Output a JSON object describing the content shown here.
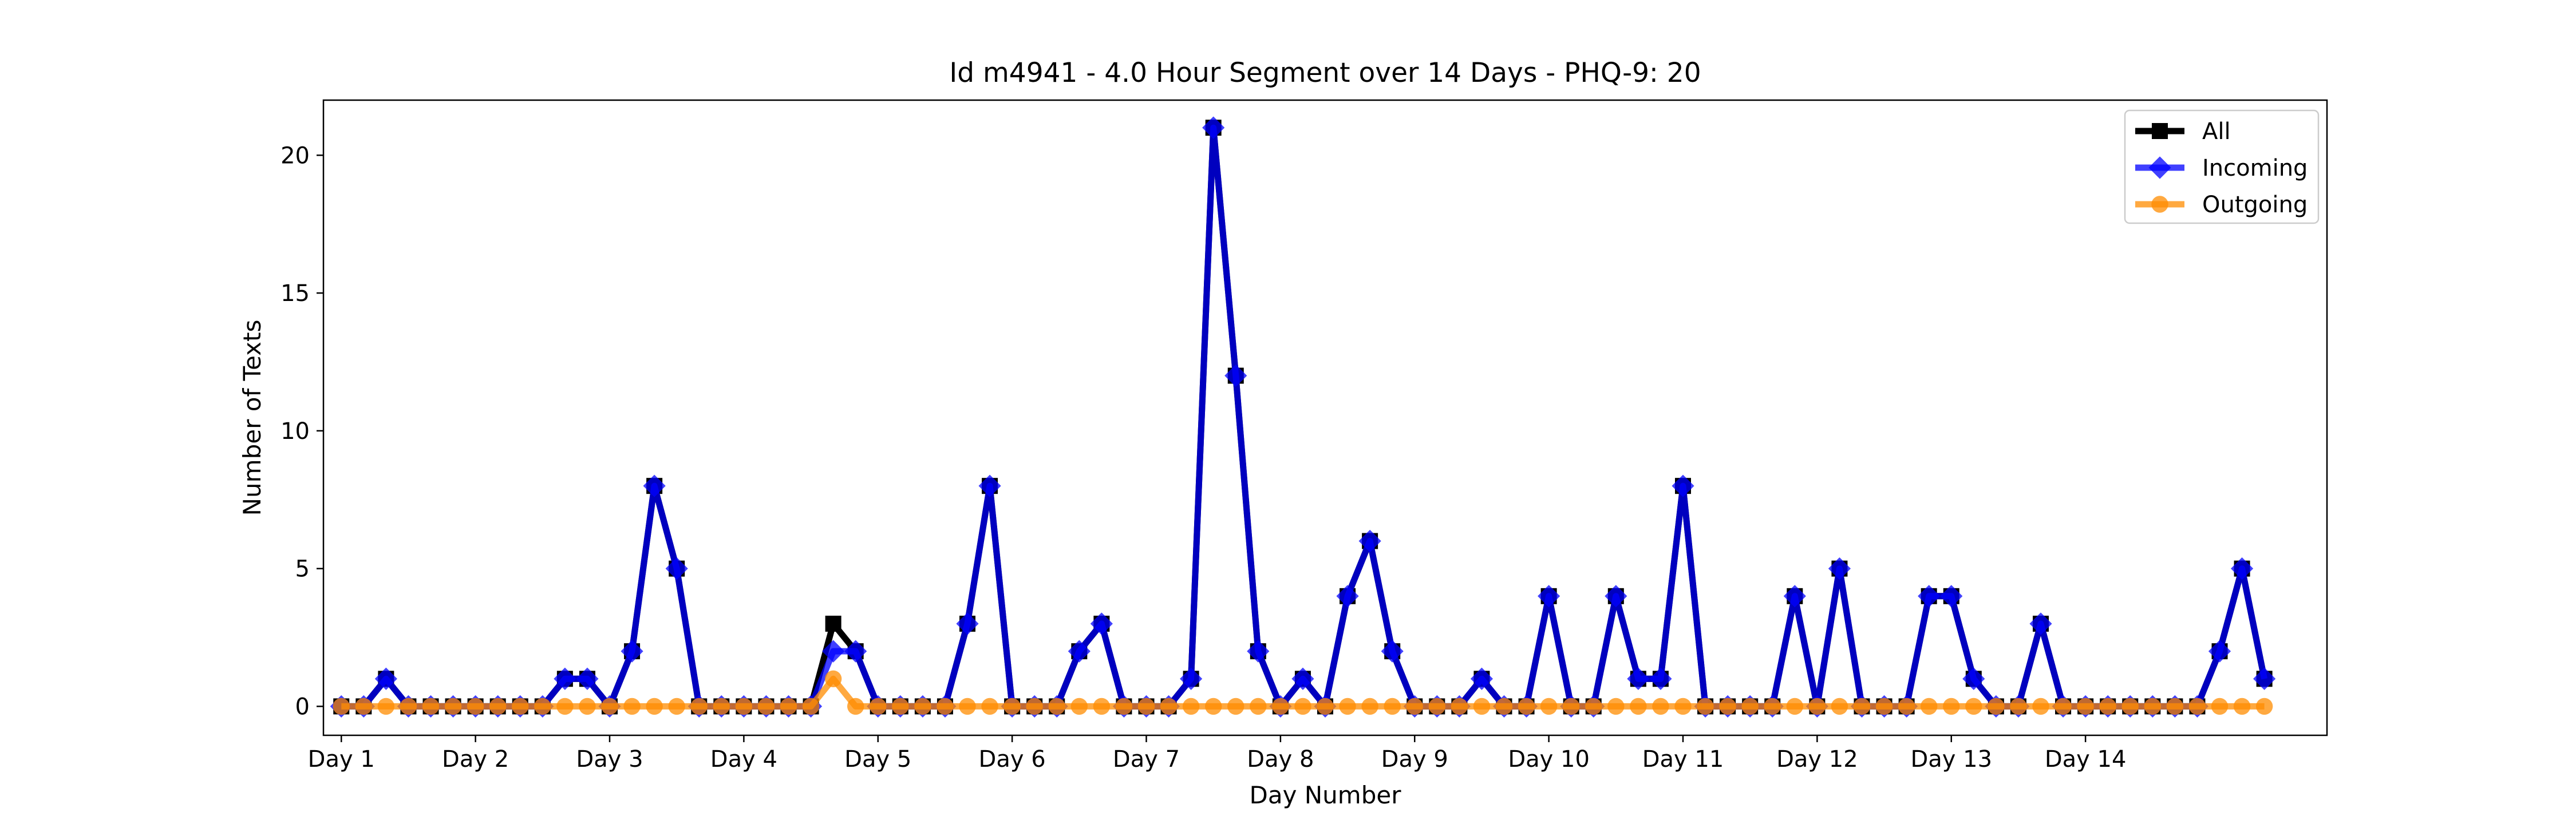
{
  "chart_data": {
    "type": "line",
    "title": "Id m4941 - 4.0 Hour Segment over 14 Days - PHQ-9: 20",
    "xlabel": "Day Number",
    "ylabel": "Number of Texts",
    "xlim": [
      -0.8,
      88.8
    ],
    "ylim": [
      -1.05,
      22
    ],
    "x_ticks": [
      {
        "value": 0,
        "label": "Day 1"
      },
      {
        "value": 6,
        "label": "Day 2"
      },
      {
        "value": 12,
        "label": "Day 3"
      },
      {
        "value": 18,
        "label": "Day 4"
      },
      {
        "value": 24,
        "label": "Day 5"
      },
      {
        "value": 30,
        "label": "Day 6"
      },
      {
        "value": 36,
        "label": "Day 7"
      },
      {
        "value": 42,
        "label": "Day 8"
      },
      {
        "value": 48,
        "label": "Day 9"
      },
      {
        "value": 54,
        "label": "Day 10"
      },
      {
        "value": 60,
        "label": "Day 11"
      },
      {
        "value": 66,
        "label": "Day 12"
      },
      {
        "value": 72,
        "label": "Day 13"
      },
      {
        "value": 78,
        "label": "Day 14"
      }
    ],
    "y_ticks": [
      {
        "value": 0,
        "label": "0"
      },
      {
        "value": 5,
        "label": "5"
      },
      {
        "value": 10,
        "label": "10"
      },
      {
        "value": 15,
        "label": "15"
      },
      {
        "value": 20,
        "label": "20"
      }
    ],
    "grid": false,
    "legend_position": "top-right",
    "series": [
      {
        "name": "All",
        "color": "#000000",
        "marker": "square",
        "values": [
          0,
          0,
          1,
          0,
          0,
          0,
          0,
          0,
          0,
          0,
          1,
          1,
          0,
          2,
          8,
          5,
          0,
          0,
          0,
          0,
          0,
          0,
          3,
          2,
          0,
          0,
          0,
          0,
          3,
          8,
          0,
          0,
          0,
          2,
          3,
          0,
          0,
          0,
          1,
          21,
          12,
          2,
          0,
          1,
          0,
          4,
          6,
          2,
          0,
          0,
          0,
          1,
          0,
          0,
          4,
          0,
          0,
          4,
          1,
          1,
          8,
          0,
          0,
          0,
          0,
          4,
          0,
          5,
          0,
          0,
          0,
          4,
          4,
          1,
          0,
          0,
          3,
          0,
          0,
          0,
          0,
          0,
          0,
          0,
          2,
          5,
          1
        ]
      },
      {
        "name": "Incoming",
        "color": "#0000ff",
        "marker": "diamond",
        "values": [
          0,
          0,
          1,
          0,
          0,
          0,
          0,
          0,
          0,
          0,
          1,
          1,
          0,
          2,
          8,
          5,
          0,
          0,
          0,
          0,
          0,
          0,
          2,
          2,
          0,
          0,
          0,
          0,
          3,
          8,
          0,
          0,
          0,
          2,
          3,
          0,
          0,
          0,
          1,
          21,
          12,
          2,
          0,
          1,
          0,
          4,
          6,
          2,
          0,
          0,
          0,
          1,
          0,
          0,
          4,
          0,
          0,
          4,
          1,
          1,
          8,
          0,
          0,
          0,
          0,
          4,
          0,
          5,
          0,
          0,
          0,
          4,
          4,
          1,
          0,
          0,
          3,
          0,
          0,
          0,
          0,
          0,
          0,
          0,
          2,
          5,
          1
        ]
      },
      {
        "name": "Outgoing",
        "color": "#ff8c00",
        "marker": "circle",
        "values": [
          0,
          0,
          0,
          0,
          0,
          0,
          0,
          0,
          0,
          0,
          0,
          0,
          0,
          0,
          0,
          0,
          0,
          0,
          0,
          0,
          0,
          0,
          1,
          0,
          0,
          0,
          0,
          0,
          0,
          0,
          0,
          0,
          0,
          0,
          0,
          0,
          0,
          0,
          0,
          0,
          0,
          0,
          0,
          0,
          0,
          0,
          0,
          0,
          0,
          0,
          0,
          0,
          0,
          0,
          0,
          0,
          0,
          0,
          0,
          0,
          0,
          0,
          0,
          0,
          0,
          0,
          0,
          0,
          0,
          0,
          0,
          0,
          0,
          0,
          0,
          0,
          0,
          0,
          0,
          0,
          0,
          0,
          0,
          0,
          0,
          0,
          0
        ]
      }
    ]
  }
}
